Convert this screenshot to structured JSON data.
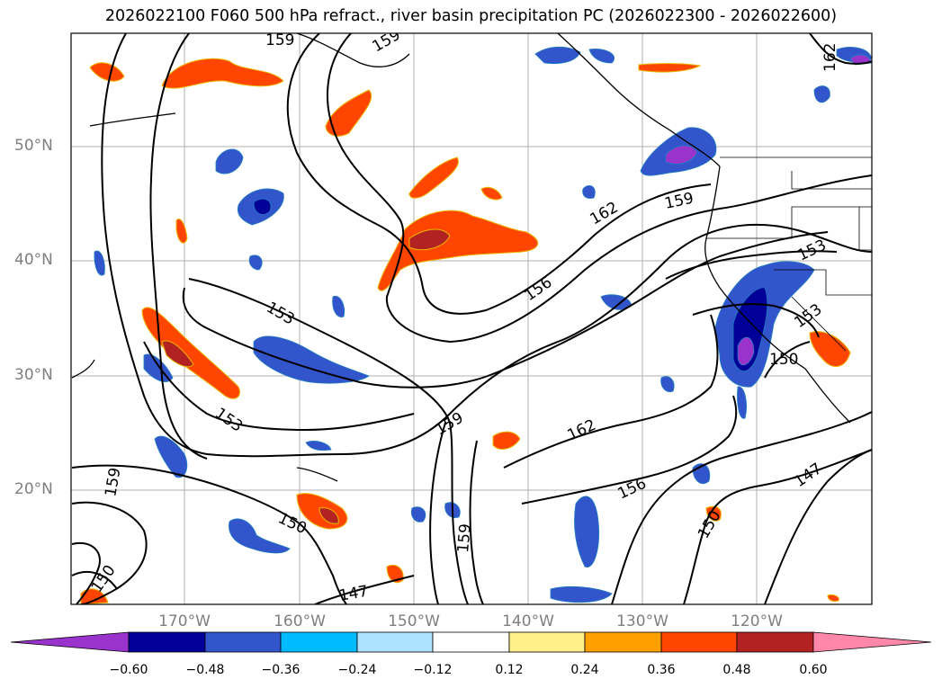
{
  "title": "2026022100 F060 500 hPa refract., river basin precipitation PC (2026022300 - 2026022600)",
  "latitude_labels": [
    "50°N",
    "40°N",
    "30°N",
    "20°N"
  ],
  "longitude_labels": [
    "170°W",
    "160°W",
    "150°W",
    "140°W",
    "130°W",
    "120°W"
  ],
  "contour_labels": [
    "159",
    "159",
    "162",
    "162",
    "159",
    "156",
    "153",
    "153",
    "153",
    "150",
    "159",
    "162",
    "156",
    "153",
    "159",
    "150",
    "159",
    "150",
    "147",
    "147",
    "150"
  ],
  "colorbar": {
    "tick_labels": [
      "−0.60",
      "−0.48",
      "−0.36",
      "−0.24",
      "−0.12",
      "0.12",
      "0.24",
      "0.36",
      "0.48",
      "0.60"
    ],
    "colors": [
      "#9933cc",
      "#000099",
      "#3355cc",
      "#00bbff",
      "#aee3ff",
      "#ffffff",
      "#fff08a",
      "#ffa000",
      "#ff4500",
      "#b22222",
      "#ff88aa"
    ]
  }
}
